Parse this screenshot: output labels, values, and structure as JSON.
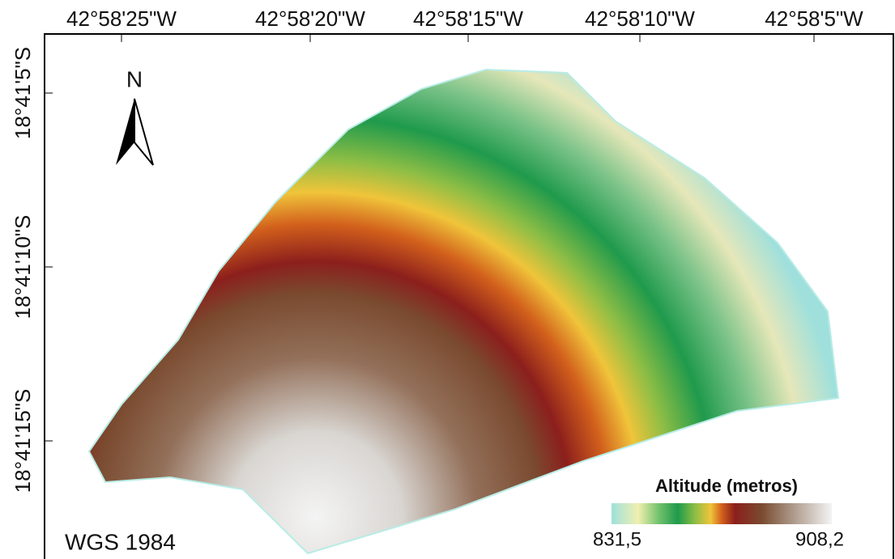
{
  "map": {
    "top_ticks": [
      "42°58'25\"W",
      "42°58'20\"W",
      "42°58'15\"W",
      "42°58'10\"W",
      "42°58'5\"W"
    ],
    "left_ticks": [
      "18°41'5\"S",
      "18°41'10\"S",
      "18°41'15\"S"
    ],
    "north_label": "N",
    "legend": {
      "title": "Altitude (metros)",
      "min_label": "831,5",
      "max_label": "908,2"
    },
    "datum": "WGS 1984"
  }
}
